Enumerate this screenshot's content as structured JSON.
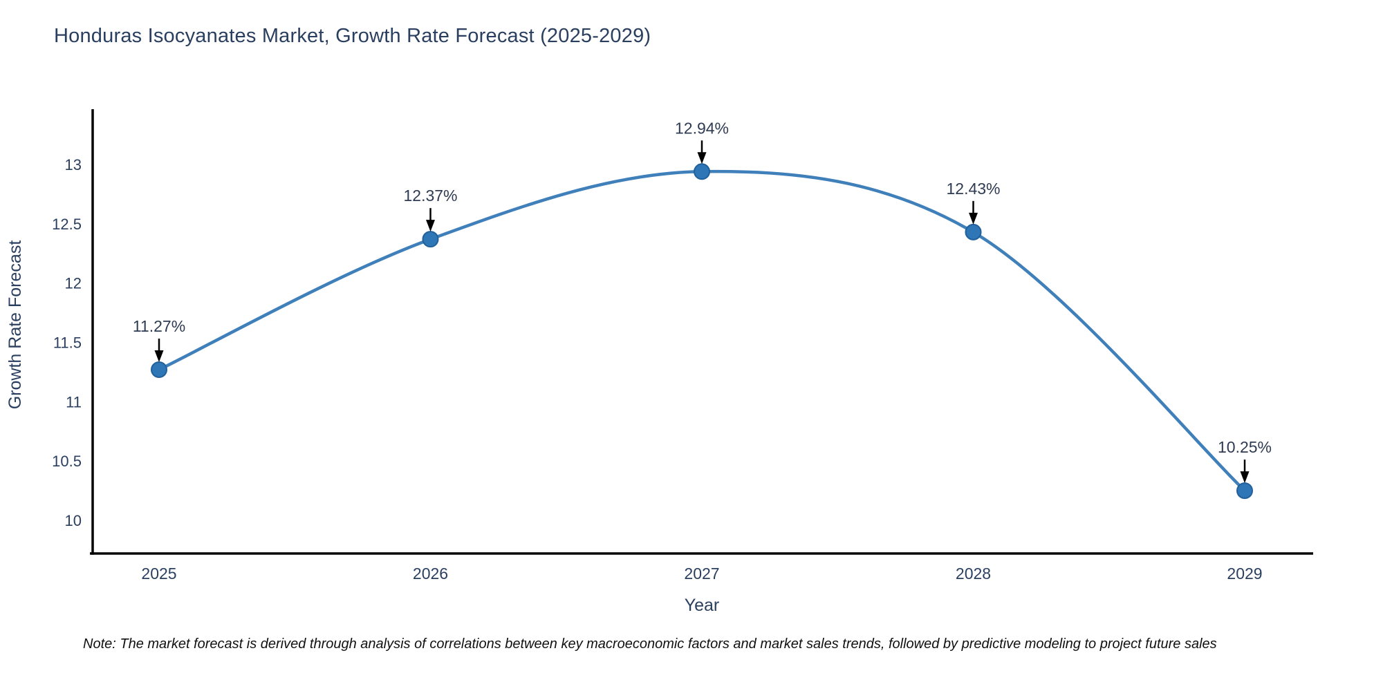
{
  "title": "Honduras Isocyanates Market, Growth Rate Forecast (2025-2029)",
  "note": "Note: The market forecast is derived through analysis of correlations between key macroeconomic factors and market sales trends, followed by predictive modeling to project future sales",
  "chart_data": {
    "type": "line",
    "title": "Honduras Isocyanates Market, Growth Rate Forecast (2025-2029)",
    "categories": [
      "2025",
      "2026",
      "2027",
      "2028",
      "2029"
    ],
    "values": [
      11.27,
      12.37,
      12.94,
      12.43,
      10.25
    ],
    "point_labels": [
      "11.27%",
      "12.37%",
      "12.94%",
      "12.43%",
      "10.25%"
    ],
    "xlabel": "Year",
    "ylabel": "Growth Rate Forecast",
    "yticks": [
      "13",
      "12.5",
      "12",
      "11.5",
      "11",
      "10.5",
      "10"
    ],
    "ytick_values": [
      13,
      12.5,
      12,
      11.5,
      11,
      10.5,
      10
    ],
    "ylim": [
      9.72,
      13.47
    ],
    "grid": false,
    "legend": "none",
    "line_color": "#3f7fba",
    "marker_color": "#2e76b5",
    "marker_edge_color": "#21609a",
    "arrow_color": "#000000",
    "axis_color": "#000000",
    "text_color": "#2a3f5f"
  }
}
